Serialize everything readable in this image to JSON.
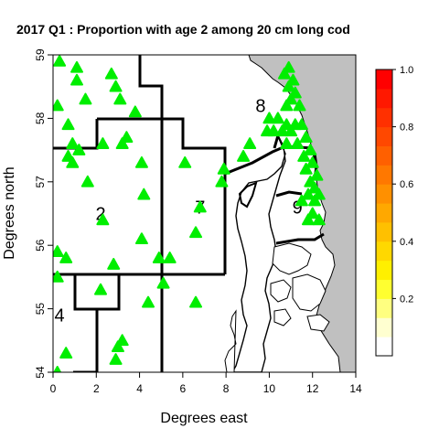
{
  "chart_data": {
    "type": "scatter",
    "title": "2017 Q1 : Proportion with age 2 among 20 cm long cod",
    "xlabel": "Degrees east",
    "ylabel": "Degrees north",
    "xlim": [
      0,
      14
    ],
    "ylim": [
      54,
      59
    ],
    "x_ticks": [
      "0",
      "2",
      "4",
      "6",
      "8",
      "10",
      "12",
      "14"
    ],
    "y_ticks": [
      "54",
      "55",
      "56",
      "57",
      "58",
      "59"
    ],
    "area_labels": [
      {
        "text": "2",
        "lon": 2.2,
        "lat": 56.5
      },
      {
        "text": "7",
        "lon": 6.8,
        "lat": 56.6
      },
      {
        "text": "8",
        "lon": 9.6,
        "lat": 58.2
      },
      {
        "text": "9",
        "lon": 11.3,
        "lat": 56.6
      },
      {
        "text": "4",
        "lon": 0.3,
        "lat": 54.9
      }
    ],
    "colorbar": {
      "ticks": [
        "0.2",
        "0.4",
        "0.6",
        "0.8",
        "1.0"
      ],
      "tick_values": [
        0.2,
        0.4,
        0.6,
        0.8,
        1.0
      ],
      "range": [
        0,
        1
      ],
      "colors": [
        "#ffffff",
        "#ffffd0",
        "#ffff80",
        "#ffff30",
        "#fff000",
        "#ffd800",
        "#ffc000",
        "#ffa800",
        "#ff9000",
        "#ff7800",
        "#ff6000",
        "#ff4800",
        "#ff3000",
        "#ff1800",
        "#ff0000"
      ]
    },
    "point_color": "#00ee00",
    "land_color": "#c0c0c0",
    "points": [
      {
        "lon": 0.3,
        "lat": 58.9
      },
      {
        "lon": 1.1,
        "lat": 58.8
      },
      {
        "lon": 1.1,
        "lat": 58.6
      },
      {
        "lon": 2.7,
        "lat": 58.7
      },
      {
        "lon": 0.2,
        "lat": 58.2
      },
      {
        "lon": 2.9,
        "lat": 58.5
      },
      {
        "lon": 1.5,
        "lat": 58.3
      },
      {
        "lon": 0.7,
        "lat": 57.9
      },
      {
        "lon": 3.1,
        "lat": 58.3
      },
      {
        "lon": 3.8,
        "lat": 58.1
      },
      {
        "lon": 3.4,
        "lat": 57.7
      },
      {
        "lon": 0.9,
        "lat": 57.6
      },
      {
        "lon": 2.3,
        "lat": 57.6
      },
      {
        "lon": 1.2,
        "lat": 57.5
      },
      {
        "lon": 3.2,
        "lat": 57.6
      },
      {
        "lon": 0.7,
        "lat": 57.4
      },
      {
        "lon": 0.9,
        "lat": 57.3
      },
      {
        "lon": 4.1,
        "lat": 57.3
      },
      {
        "lon": 6.1,
        "lat": 57.3
      },
      {
        "lon": 7.9,
        "lat": 57.2
      },
      {
        "lon": 1.6,
        "lat": 57.0
      },
      {
        "lon": 7.8,
        "lat": 57.0
      },
      {
        "lon": 4.2,
        "lat": 56.8
      },
      {
        "lon": 6.8,
        "lat": 56.6
      },
      {
        "lon": 2.3,
        "lat": 56.4
      },
      {
        "lon": 6.6,
        "lat": 56.2
      },
      {
        "lon": 4.1,
        "lat": 56.1
      },
      {
        "lon": 0.2,
        "lat": 55.9
      },
      {
        "lon": 0.6,
        "lat": 55.8
      },
      {
        "lon": 4.9,
        "lat": 55.8
      },
      {
        "lon": 5.4,
        "lat": 55.8
      },
      {
        "lon": 2.8,
        "lat": 55.7
      },
      {
        "lon": 0.2,
        "lat": 55.5
      },
      {
        "lon": 5.1,
        "lat": 55.4
      },
      {
        "lon": 2.2,
        "lat": 55.3
      },
      {
        "lon": 4.4,
        "lat": 55.1
      },
      {
        "lon": 6.6,
        "lat": 55.1
      },
      {
        "lon": 3.2,
        "lat": 54.5
      },
      {
        "lon": 3.0,
        "lat": 54.4
      },
      {
        "lon": 0.6,
        "lat": 54.3
      },
      {
        "lon": 2.9,
        "lat": 54.2
      },
      {
        "lon": 0.2,
        "lat": 54.0
      },
      {
        "lon": 10.9,
        "lat": 58.8
      },
      {
        "lon": 10.7,
        "lat": 58.7
      },
      {
        "lon": 11.1,
        "lat": 58.6
      },
      {
        "lon": 10.9,
        "lat": 58.5
      },
      {
        "lon": 11.2,
        "lat": 58.4
      },
      {
        "lon": 11.0,
        "lat": 58.3
      },
      {
        "lon": 10.8,
        "lat": 58.2
      },
      {
        "lon": 11.4,
        "lat": 58.2
      },
      {
        "lon": 10.0,
        "lat": 58.0
      },
      {
        "lon": 10.4,
        "lat": 58.0
      },
      {
        "lon": 10.8,
        "lat": 57.9
      },
      {
        "lon": 11.2,
        "lat": 57.9
      },
      {
        "lon": 11.5,
        "lat": 57.9
      },
      {
        "lon": 10.2,
        "lat": 57.8
      },
      {
        "lon": 10.6,
        "lat": 57.8
      },
      {
        "lon": 11.0,
        "lat": 57.8
      },
      {
        "lon": 9.9,
        "lat": 57.8
      },
      {
        "lon": 11.7,
        "lat": 57.7
      },
      {
        "lon": 10.8,
        "lat": 57.6
      },
      {
        "lon": 11.3,
        "lat": 57.6
      },
      {
        "lon": 9.1,
        "lat": 57.6
      },
      {
        "lon": 11.9,
        "lat": 57.5
      },
      {
        "lon": 8.8,
        "lat": 57.4
      },
      {
        "lon": 11.6,
        "lat": 57.4
      },
      {
        "lon": 12.0,
        "lat": 57.3
      },
      {
        "lon": 11.7,
        "lat": 57.2
      },
      {
        "lon": 12.2,
        "lat": 57.1
      },
      {
        "lon": 11.9,
        "lat": 57.0
      },
      {
        "lon": 12.1,
        "lat": 56.9
      },
      {
        "lon": 11.8,
        "lat": 56.8
      },
      {
        "lon": 12.3,
        "lat": 56.8
      },
      {
        "lon": 11.5,
        "lat": 56.7
      },
      {
        "lon": 12.1,
        "lat": 56.7
      },
      {
        "lon": 12.0,
        "lat": 56.5
      },
      {
        "lon": 11.8,
        "lat": 56.4
      },
      {
        "lon": 12.3,
        "lat": 56.4
      }
    ]
  }
}
